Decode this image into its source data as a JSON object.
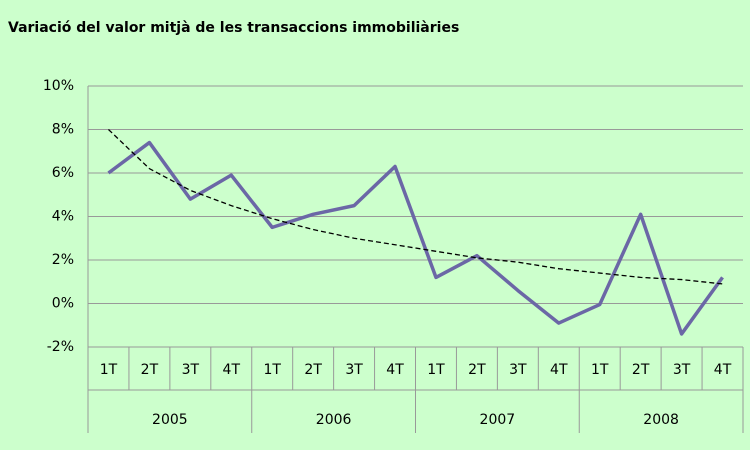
{
  "chart_data": {
    "type": "line",
    "title": "Variació del valor mitjà de les transaccions immobiliàries",
    "categories": [
      "1T",
      "2T",
      "3T",
      "4T",
      "1T",
      "2T",
      "3T",
      "4T",
      "1T",
      "2T",
      "3T",
      "4T",
      "1T",
      "2T",
      "3T",
      "4T"
    ],
    "category_groups": [
      "2005",
      "2006",
      "2007",
      "2008"
    ],
    "values": [
      6.0,
      7.4,
      4.8,
      5.9,
      3.5,
      4.1,
      4.5,
      6.3,
      1.2,
      2.2,
      0.6,
      -0.9,
      -0.05,
      4.1,
      -1.4,
      1.2
    ],
    "color": "#6b67a6",
    "trendline": {
      "values": [
        8.0,
        6.2,
        5.2,
        4.5,
        3.9,
        3.4,
        3.0,
        2.7,
        2.4,
        2.1,
        1.9,
        1.6,
        1.4,
        1.2,
        1.1,
        0.9
      ],
      "color": "#000000",
      "dashed": true
    },
    "ylim": [
      -2,
      10
    ],
    "yticks": [
      {
        "value": -2,
        "label": "-2%"
      },
      {
        "value": 0,
        "label": "0%"
      },
      {
        "value": 2,
        "label": "2%"
      },
      {
        "value": 4,
        "label": "4%"
      },
      {
        "value": 6,
        "label": "6%"
      },
      {
        "value": 8,
        "label": "8%"
      },
      {
        "value": 10,
        "label": "10%"
      }
    ],
    "grid": true
  }
}
